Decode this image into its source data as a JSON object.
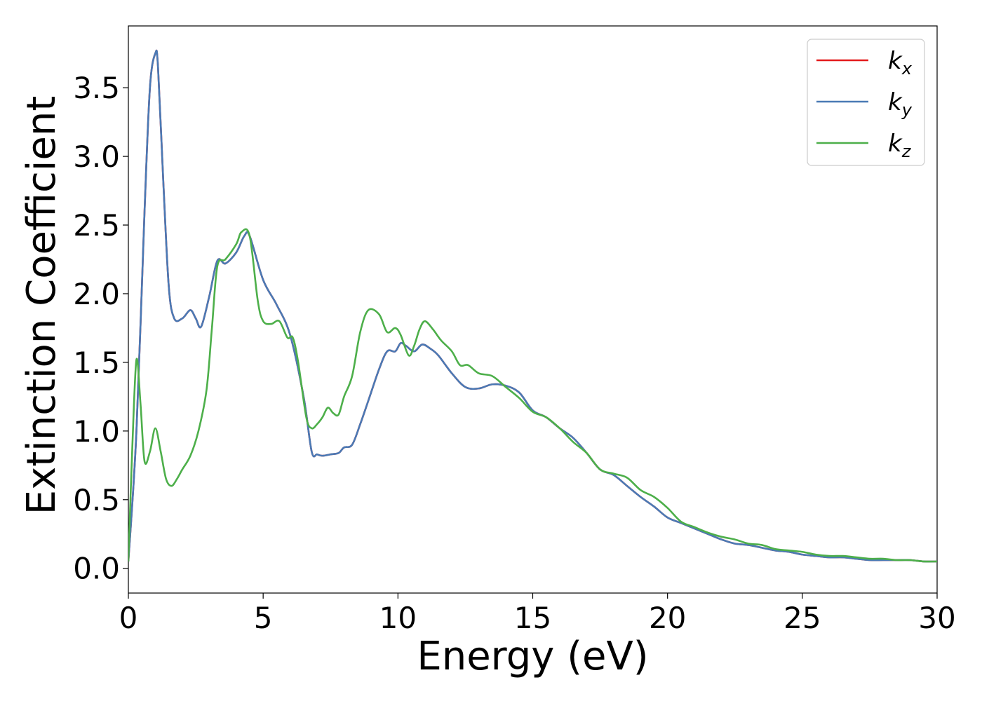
{
  "chart_data": {
    "type": "line",
    "title": "",
    "xlabel": "Energy (eV)",
    "ylabel": "Extinction Coefficient",
    "xlim": [
      0,
      30
    ],
    "ylim": [
      -0.18,
      3.95
    ],
    "xticks": [
      0,
      5,
      10,
      15,
      20,
      25,
      30
    ],
    "xtick_labels": [
      "0",
      "5",
      "10",
      "15",
      "20",
      "25",
      "30"
    ],
    "yticks": [
      0.0,
      0.5,
      1.0,
      1.5,
      2.0,
      2.5,
      3.0,
      3.5
    ],
    "ytick_labels": [
      "0.0",
      "0.5",
      "1.0",
      "1.5",
      "2.0",
      "2.5",
      "3.0",
      "3.5"
    ],
    "grid": false,
    "legend_position": "top-right",
    "series": [
      {
        "name": "k_x",
        "legend_base": "k",
        "legend_sub": "x",
        "color": "#e41a1c",
        "x": [
          0,
          0.3,
          0.6,
          0.8,
          1.0,
          1.1,
          1.3,
          1.5,
          1.7,
          2.0,
          2.3,
          2.5,
          2.7,
          3.0,
          3.3,
          3.6,
          4.0,
          4.3,
          4.5,
          5.0,
          5.5,
          6.0,
          6.5,
          6.8,
          7.0,
          7.2,
          7.5,
          7.8,
          8.0,
          8.3,
          8.6,
          8.9,
          9.3,
          9.6,
          9.9,
          10.1,
          10.3,
          10.6,
          10.9,
          11.2,
          11.5,
          12.0,
          12.5,
          13.0,
          13.5,
          14.0,
          14.5,
          15.0,
          15.5,
          16.0,
          16.5,
          17.0,
          17.5,
          18.0,
          18.5,
          19.0,
          19.5,
          20.0,
          20.5,
          21.0,
          21.5,
          22.0,
          22.5,
          23.0,
          23.5,
          24.0,
          24.5,
          25.0,
          25.5,
          26.0,
          26.5,
          27.0,
          27.5,
          28.0,
          28.5,
          29.0,
          29.5,
          30.0
        ],
        "y": [
          0.05,
          1.0,
          2.6,
          3.5,
          3.75,
          3.65,
          2.8,
          2.05,
          1.82,
          1.82,
          1.88,
          1.82,
          1.76,
          1.98,
          2.24,
          2.22,
          2.3,
          2.42,
          2.42,
          2.1,
          1.92,
          1.7,
          1.25,
          0.85,
          0.83,
          0.82,
          0.83,
          0.84,
          0.88,
          0.9,
          1.05,
          1.22,
          1.45,
          1.58,
          1.58,
          1.64,
          1.62,
          1.58,
          1.63,
          1.6,
          1.55,
          1.42,
          1.32,
          1.31,
          1.34,
          1.33,
          1.28,
          1.15,
          1.1,
          1.02,
          0.95,
          0.84,
          0.72,
          0.68,
          0.6,
          0.52,
          0.45,
          0.37,
          0.33,
          0.29,
          0.25,
          0.21,
          0.18,
          0.17,
          0.15,
          0.13,
          0.12,
          0.1,
          0.09,
          0.08,
          0.08,
          0.07,
          0.06,
          0.06,
          0.06,
          0.06,
          0.05,
          0.05
        ]
      },
      {
        "name": "k_y",
        "legend_base": "k",
        "legend_sub": "y",
        "color": "#4a7ab5",
        "x": [
          0,
          0.3,
          0.6,
          0.8,
          1.0,
          1.1,
          1.3,
          1.5,
          1.7,
          2.0,
          2.3,
          2.5,
          2.7,
          3.0,
          3.3,
          3.6,
          4.0,
          4.3,
          4.5,
          5.0,
          5.5,
          6.0,
          6.5,
          6.8,
          7.0,
          7.2,
          7.5,
          7.8,
          8.0,
          8.3,
          8.6,
          8.9,
          9.3,
          9.6,
          9.9,
          10.1,
          10.3,
          10.6,
          10.9,
          11.2,
          11.5,
          12.0,
          12.5,
          13.0,
          13.5,
          14.0,
          14.5,
          15.0,
          15.5,
          16.0,
          16.5,
          17.0,
          17.5,
          18.0,
          18.5,
          19.0,
          19.5,
          20.0,
          20.5,
          21.0,
          21.5,
          22.0,
          22.5,
          23.0,
          23.5,
          24.0,
          24.5,
          25.0,
          25.5,
          26.0,
          26.5,
          27.0,
          27.5,
          28.0,
          28.5,
          29.0,
          29.5,
          30.0
        ],
        "y": [
          0.05,
          1.0,
          2.6,
          3.5,
          3.75,
          3.65,
          2.8,
          2.05,
          1.82,
          1.82,
          1.88,
          1.82,
          1.76,
          1.98,
          2.24,
          2.22,
          2.3,
          2.42,
          2.42,
          2.1,
          1.92,
          1.7,
          1.25,
          0.85,
          0.83,
          0.82,
          0.83,
          0.84,
          0.88,
          0.9,
          1.05,
          1.22,
          1.45,
          1.58,
          1.58,
          1.64,
          1.62,
          1.58,
          1.63,
          1.6,
          1.55,
          1.42,
          1.32,
          1.31,
          1.34,
          1.33,
          1.28,
          1.15,
          1.1,
          1.02,
          0.95,
          0.84,
          0.72,
          0.68,
          0.6,
          0.52,
          0.45,
          0.37,
          0.33,
          0.29,
          0.25,
          0.21,
          0.18,
          0.17,
          0.15,
          0.13,
          0.12,
          0.1,
          0.09,
          0.08,
          0.08,
          0.07,
          0.06,
          0.06,
          0.06,
          0.06,
          0.05,
          0.05
        ]
      },
      {
        "name": "k_z",
        "legend_base": "k",
        "legend_sub": "z",
        "color": "#4daf4a",
        "x": [
          0,
          0.15,
          0.3,
          0.45,
          0.6,
          0.8,
          1.0,
          1.2,
          1.4,
          1.6,
          1.8,
          2.0,
          2.3,
          2.6,
          2.9,
          3.1,
          3.3,
          3.6,
          4.0,
          4.2,
          4.5,
          4.8,
          5.0,
          5.3,
          5.6,
          5.9,
          6.1,
          6.3,
          6.6,
          6.8,
          7.0,
          7.2,
          7.4,
          7.6,
          7.8,
          8.0,
          8.3,
          8.6,
          8.9,
          9.3,
          9.6,
          9.9,
          10.1,
          10.4,
          10.6,
          10.8,
          11.0,
          11.3,
          11.6,
          12.0,
          12.3,
          12.6,
          13.0,
          13.5,
          14.0,
          14.5,
          15.0,
          15.5,
          16.0,
          16.5,
          17.0,
          17.5,
          18.0,
          18.5,
          19.0,
          19.5,
          20.0,
          20.5,
          21.0,
          21.5,
          22.0,
          22.5,
          23.0,
          23.5,
          24.0,
          24.5,
          25.0,
          25.5,
          26.0,
          26.5,
          27.0,
          27.5,
          28.0,
          28.5,
          29.0,
          29.5,
          30.0
        ],
        "y": [
          0.05,
          0.9,
          1.52,
          1.2,
          0.78,
          0.85,
          1.02,
          0.85,
          0.65,
          0.6,
          0.65,
          0.72,
          0.82,
          1.0,
          1.3,
          1.75,
          2.2,
          2.25,
          2.36,
          2.45,
          2.42,
          1.95,
          1.8,
          1.78,
          1.8,
          1.68,
          1.68,
          1.5,
          1.1,
          1.02,
          1.05,
          1.1,
          1.17,
          1.13,
          1.12,
          1.25,
          1.4,
          1.72,
          1.88,
          1.85,
          1.72,
          1.75,
          1.7,
          1.55,
          1.62,
          1.74,
          1.8,
          1.74,
          1.66,
          1.58,
          1.48,
          1.48,
          1.42,
          1.4,
          1.32,
          1.24,
          1.14,
          1.1,
          1.02,
          0.92,
          0.84,
          0.72,
          0.69,
          0.66,
          0.57,
          0.52,
          0.44,
          0.34,
          0.3,
          0.26,
          0.23,
          0.21,
          0.18,
          0.17,
          0.14,
          0.13,
          0.12,
          0.1,
          0.09,
          0.09,
          0.08,
          0.07,
          0.07,
          0.06,
          0.06,
          0.05,
          0.05
        ]
      }
    ]
  }
}
